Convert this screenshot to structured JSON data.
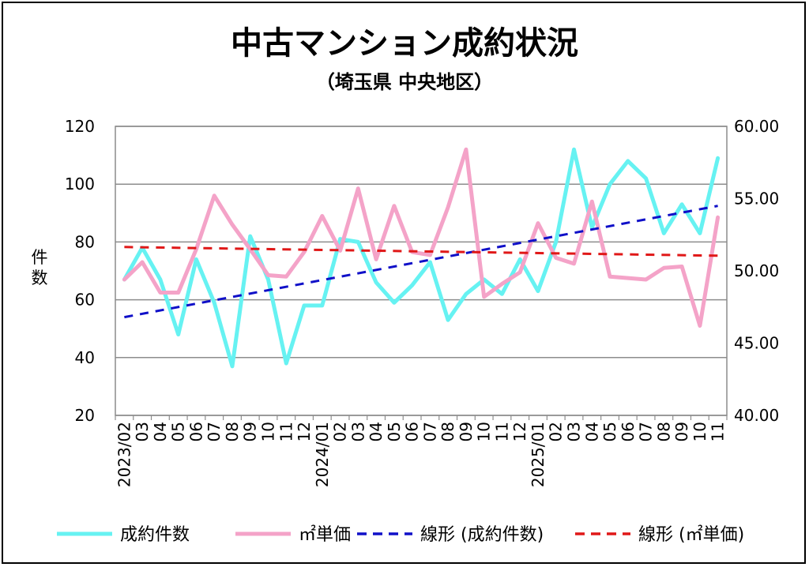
{
  "chart_data": {
    "type": "line",
    "title": "中古マンション成約状況",
    "subtitle": "（埼玉県 中央地区）",
    "ylabel": "件数",
    "y_left_lim": [
      20,
      120
    ],
    "y_left_ticks": [
      "20",
      "40",
      "60",
      "80",
      "100",
      "120"
    ],
    "y_right_lim": [
      40,
      60
    ],
    "y_right_ticks": [
      "40.00",
      "45.00",
      "50.00",
      "55.00",
      "60.00"
    ],
    "x_labels": [
      "2023/02",
      "03",
      "04",
      "05",
      "06",
      "07",
      "08",
      "09",
      "10",
      "11",
      "12",
      "2024/01",
      "02",
      "03",
      "04",
      "05",
      "06",
      "07",
      "08",
      "09",
      "10",
      "11",
      "12",
      "2025/01",
      "02",
      "03",
      "04",
      "05",
      "06",
      "07",
      "08",
      "09",
      "10",
      "11"
    ],
    "grid": true,
    "legend_position": "bottom",
    "series": [
      {
        "name": "成約件数",
        "axis": "left",
        "color": "#66F2F2",
        "values": [
          67,
          78,
          67,
          48,
          74,
          59,
          37,
          82,
          67,
          38,
          58,
          58,
          81,
          80,
          66,
          59,
          65,
          73,
          53,
          62,
          67,
          62,
          74,
          63,
          80,
          112,
          85,
          100,
          108,
          102,
          83,
          93,
          83,
          109
        ]
      },
      {
        "name": "㎡単価",
        "axis": "right",
        "color": "#F4A3C8",
        "values": [
          49.4,
          50.6,
          48.5,
          48.5,
          51.5,
          55.2,
          53.2,
          51.5,
          49.7,
          49.6,
          51.3,
          53.8,
          51.4,
          55.7,
          50.8,
          54.5,
          51.3,
          51.1,
          54.4,
          58.4,
          48.2,
          49.1,
          49.9,
          53.3,
          50.9,
          50.5,
          54.8,
          49.6,
          49.5,
          49.4,
          50.2,
          50.3,
          46.2,
          53.7
        ]
      },
      {
        "name": "線形 (成約件数)",
        "axis": "left",
        "color": "#1010C8",
        "dashed": true,
        "values": [
          54,
          92.5
        ]
      },
      {
        "name": "線形 (㎡単価)",
        "axis": "right",
        "color": "#E01818",
        "dashed": true,
        "values": [
          51.65,
          51.05
        ]
      }
    ]
  }
}
